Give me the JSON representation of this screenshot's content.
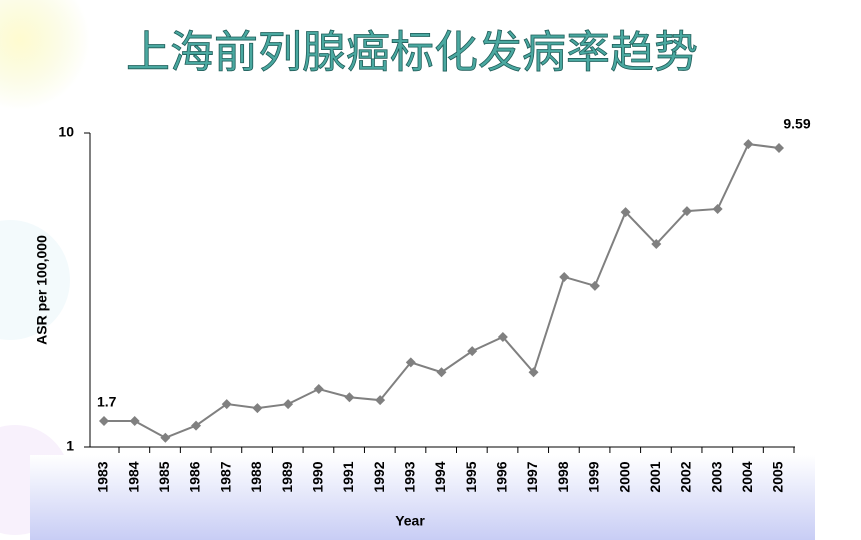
{
  "chart_data": {
    "type": "line",
    "title": "上海前列腺癌标化发病率趋势",
    "x_label": "Year",
    "y_label": "ASR per 100,000",
    "categories": [
      "1983",
      "1984",
      "1985",
      "1986",
      "1987",
      "1988",
      "1989",
      "1990",
      "1991",
      "1992",
      "1993",
      "1994",
      "1995",
      "1996",
      "1997",
      "1998",
      "1999",
      "2000",
      "2001",
      "2002",
      "2003",
      "2004",
      "2005"
    ],
    "series": [
      {
        "color": "#808080",
        "values": [
          1.21,
          1.21,
          1.07,
          1.17,
          1.37,
          1.33,
          1.37,
          1.53,
          1.44,
          1.41,
          1.86,
          1.73,
          2.02,
          2.24,
          1.73,
          3.48,
          3.26,
          5.6,
          4.43,
          5.64,
          5.73,
          9.22,
          8.96
        ]
      }
    ],
    "annotations": [
      {
        "text": "1.7",
        "color": "#000000"
      },
      {
        "text": "9.59",
        "color": "#e00000"
      }
    ],
    "ylim": [
      1,
      10
    ],
    "yticks": [
      1,
      10
    ],
    "log_y": true
  }
}
